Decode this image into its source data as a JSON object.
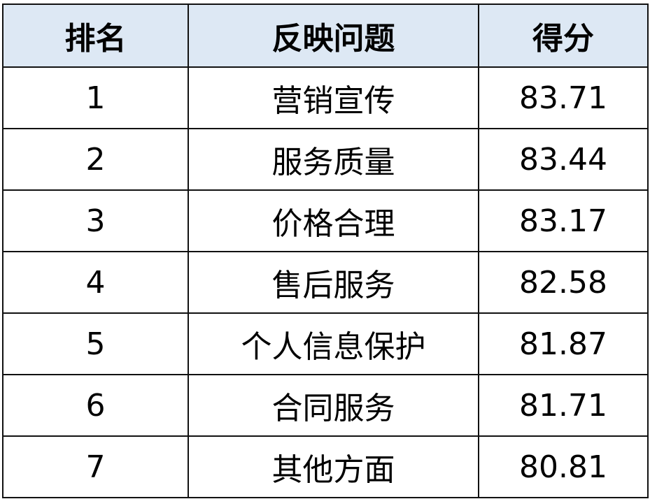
{
  "table": {
    "headers": [
      "排名",
      "反映问题",
      "得分"
    ],
    "rows": [
      {
        "rank": "1",
        "issue": "营销宣传",
        "score": "83.71"
      },
      {
        "rank": "2",
        "issue": "服务质量",
        "score": "83.44"
      },
      {
        "rank": "3",
        "issue": "价格合理",
        "score": "83.17"
      },
      {
        "rank": "4",
        "issue": "售后服务",
        "score": "82.58"
      },
      {
        "rank": "5",
        "issue": "个人信息保护",
        "score": "81.87"
      },
      {
        "rank": "6",
        "issue": "合同服务",
        "score": "81.71"
      },
      {
        "rank": "7",
        "issue": "其他方面",
        "score": "80.81"
      }
    ],
    "header_bg": "#dde8f4"
  }
}
